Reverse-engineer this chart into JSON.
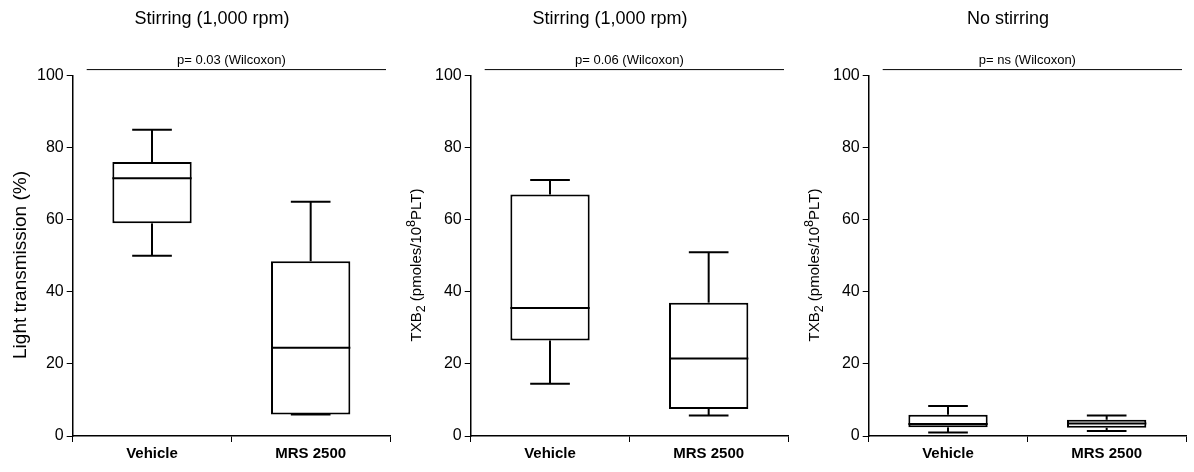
{
  "chart_data": [
    {
      "type": "box",
      "title": "Stirring (1,000 rpm)",
      "ylabel": "Light transmission (%)",
      "categories": [
        "Vehicle",
        "MRS 2500"
      ],
      "ylim": [
        0,
        100
      ],
      "yticks": [
        0,
        20,
        40,
        60,
        80,
        100
      ],
      "boxes": [
        {
          "low": 50,
          "q1": 59,
          "median": 71.5,
          "q3": 76,
          "high": 85
        },
        {
          "low": 6,
          "q1": 6,
          "median": 24.5,
          "q3": 48.5,
          "high": 65
        }
      ],
      "annotations": [
        "p= 0.03 (Wilcoxon)"
      ]
    },
    {
      "type": "box",
      "title": "Stirring (1,000 rpm)",
      "ylabel": "TXB$_{2}$ (pmoles/10$^{8}$PLT)",
      "categories": [
        "Vehicle",
        "MRS 2500"
      ],
      "ylim": [
        0,
        100
      ],
      "yticks": [
        0,
        20,
        40,
        60,
        80,
        100
      ],
      "boxes": [
        {
          "low": 14.5,
          "q1": 26.5,
          "median": 35.5,
          "q3": 67,
          "high": 71
        },
        {
          "low": 5.7,
          "q1": 7.5,
          "median": 21.5,
          "q3": 37,
          "high": 51
        }
      ],
      "annotations": [
        "p= 0.06 (Wilcoxon)"
      ]
    },
    {
      "type": "box",
      "title": "No stirring",
      "ylabel": "TXB$_{2}$ (pmoles/10$^{8}$PLT)",
      "categories": [
        "Vehicle",
        "MRS 2500"
      ],
      "ylim": [
        0,
        100
      ],
      "yticks": [
        0,
        20,
        40,
        60,
        80,
        100
      ],
      "boxes": [
        {
          "low": 1,
          "q1": 2.4,
          "median": 3.3,
          "q3": 5.9,
          "high": 8.3
        },
        {
          "low": 1.4,
          "q1": 2.3,
          "median": 3.5,
          "q3": 4.5,
          "high": 5.7
        }
      ],
      "annotations": [
        "p= ns (Wilcoxon)"
      ]
    }
  ]
}
